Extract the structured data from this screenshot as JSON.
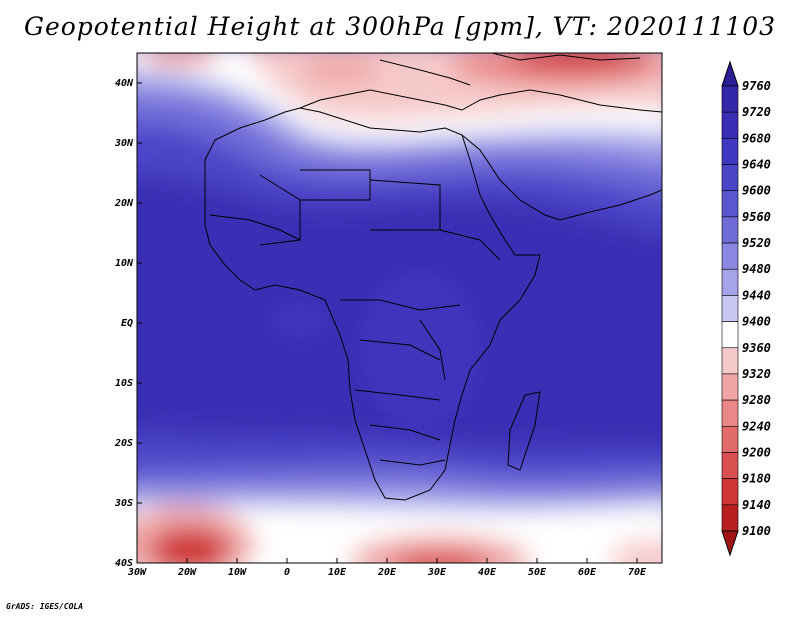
{
  "title": "Geopotential Height at 300hPa [gpm], VT: 2020111103",
  "credit": "GrADS: IGES/COLA",
  "map": {
    "variable": "Geopotential Height",
    "level": "300hPa",
    "units": "gpm",
    "valid_time": "2020111103",
    "lon_range": [
      -30,
      75
    ],
    "lat_range": [
      -40,
      45
    ],
    "lon_ticks": [
      "30W",
      "20W",
      "10W",
      "0",
      "10E",
      "20E",
      "30E",
      "40E",
      "50E",
      "60E",
      "70E"
    ],
    "lat_ticks": [
      "40N",
      "30N",
      "20N",
      "10N",
      "EQ",
      "10S",
      "20S",
      "30S",
      "40S"
    ]
  },
  "colorbar": {
    "levels": [
      9760,
      9720,
      9680,
      9640,
      9600,
      9560,
      9520,
      9480,
      9440,
      9400,
      9360,
      9320,
      9280,
      9240,
      9200,
      9180,
      9140,
      9100
    ],
    "colors": [
      "#2b1d96",
      "#3427a8",
      "#3a2fb4",
      "#4038c0",
      "#4b45c8",
      "#5a56d0",
      "#6f6cd8",
      "#8987e0",
      "#a5a4ea",
      "#c8c8f3",
      "#ffffff",
      "#f6c9c9",
      "#f0a6a6",
      "#ea8888",
      "#e26c6c",
      "#da5050",
      "#cf3535",
      "#b81f1f",
      "#a01414"
    ]
  }
}
